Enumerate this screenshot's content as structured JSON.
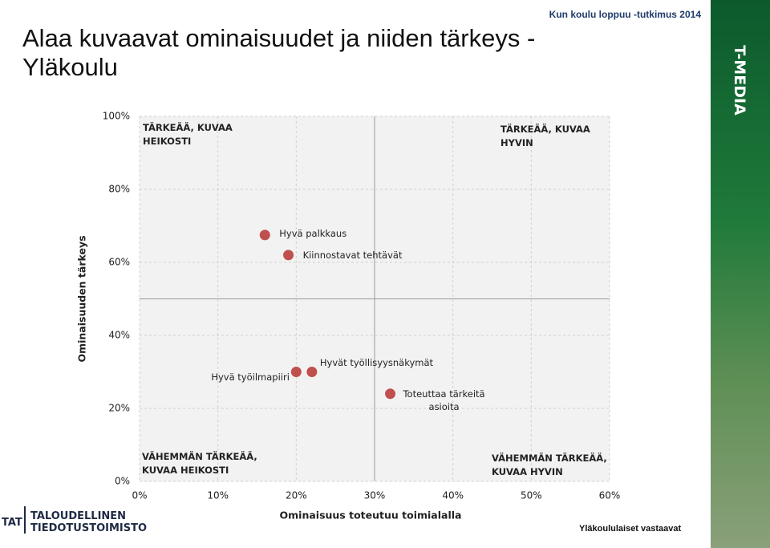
{
  "header": {
    "title": "Alaa kuvaavat ominaisuudet ja niiden tärkeys - Yläkoulu",
    "study": "Kun koulu loppuu -tutkimus 2014",
    "brand": "T-MEDIA"
  },
  "footer": {
    "logo_short": "TAT",
    "logo_line1": "TALOUDELLINEN",
    "logo_line2": "TIEDOTUSTOIMISTO",
    "note": "Yläkoululaiset vastaavat"
  },
  "chart_data": {
    "type": "scatter",
    "x_label": "Ominaisuus toteutuu toimialalla",
    "y_label": "Ominaisuuden tärkeys",
    "x": [
      16,
      19,
      20,
      22,
      32
    ],
    "values": [
      67.5,
      62,
      30,
      30,
      24
    ],
    "labels": [
      "Hyvä palkkaus",
      "Kiinnostavat tehtävät",
      "Hyvä työilmapiiri",
      "Hyvät työllisyysnäkymät",
      "Toteuttaa tärkeitä asioita"
    ],
    "color": "#c0504d",
    "xlim": [
      0,
      60
    ],
    "ylim": [
      0,
      100
    ],
    "xticks": [
      {
        "value": 0,
        "label": "0%"
      },
      {
        "value": 10,
        "label": "10%"
      },
      {
        "value": 20,
        "label": "20%"
      },
      {
        "value": 30,
        "label": "30%"
      },
      {
        "value": 40,
        "label": "40%"
      },
      {
        "value": 50,
        "label": "50%"
      },
      {
        "value": 60,
        "label": "60%"
      }
    ],
    "yticks": [
      {
        "value": 0,
        "label": "0%"
      },
      {
        "value": 20,
        "label": "20%"
      },
      {
        "value": 40,
        "label": "40%"
      },
      {
        "value": 60,
        "label": "60%"
      },
      {
        "value": 80,
        "label": "80%"
      },
      {
        "value": 100,
        "label": "100%"
      }
    ],
    "grid": true,
    "reference_lines": {
      "x": 30,
      "y": 50
    },
    "quadrants": [
      "TÄRKEÄÄ, KUVAA HEIKOSTI",
      "TÄRKEÄÄ, KUVAA HYVIN",
      "VÄHEMMÄN TÄRKEÄÄ, KUVAA HEIKOSTI",
      "VÄHEMMÄN TÄRKEÄÄ, KUVAA HYVIN"
    ]
  }
}
